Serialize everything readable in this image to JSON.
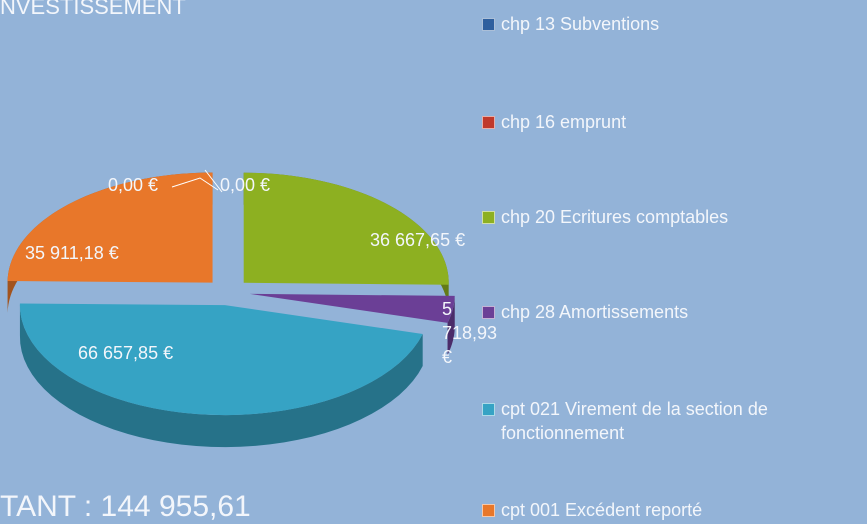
{
  "chart_data": {
    "type": "pie",
    "title": "NVESTISSEMENT",
    "subtitle": "TANT : 144 955,61",
    "categories": [
      "chp 13 Subventions",
      "chp 16 emprunt",
      "chp 20 Ecritures comptables",
      "chp 28 Amortissements",
      "cpt 021 Virement de la section de fonctionnement",
      "cpt 001 Excédent reporté"
    ],
    "values": [
      0,
      0,
      36667.65,
      5718.93,
      66657.85,
      35911.18
    ],
    "value_labels": [
      "0,00 €",
      "0,00 €",
      "36 667,65 €",
      "5 718,93 €",
      "66 657,85 €",
      "35 911,18 €"
    ],
    "colors": [
      "#2e5f9e",
      "#c0392b",
      "#8db021",
      "#6b3f96",
      "#36a3c4",
      "#e8772a"
    ]
  }
}
